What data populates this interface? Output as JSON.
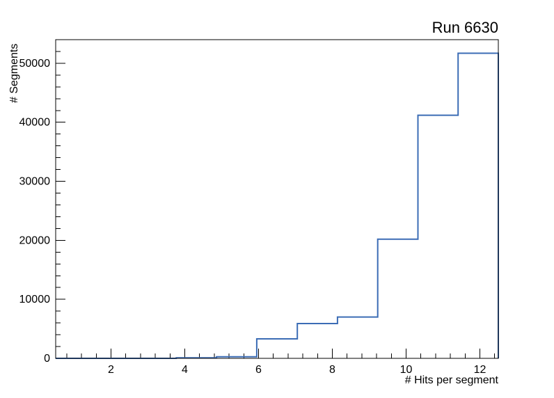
{
  "chart_data": {
    "type": "step-histogram",
    "title": "Run 6630",
    "xlabel": "# Hits per segment",
    "ylabel": "# Segments",
    "xlim": [
      0.5,
      12.5
    ],
    "ylim": [
      0,
      54000
    ],
    "x_ticks": [
      2,
      4,
      6,
      8,
      10,
      12
    ],
    "y_ticks": [
      0,
      10000,
      20000,
      30000,
      40000,
      50000
    ],
    "bin_edges": [
      0.5,
      1.59,
      2.68,
      3.77,
      4.86,
      5.95,
      7.05,
      8.14,
      9.23,
      10.32,
      11.41,
      12.5
    ],
    "counts": [
      0,
      0,
      0,
      80,
      260,
      3300,
      5900,
      7000,
      20200,
      41200,
      51700
    ],
    "line_color": "#3b6cb5",
    "frame_color": "#000000",
    "background_color": "#ffffff",
    "grid": false,
    "legend": "none"
  }
}
